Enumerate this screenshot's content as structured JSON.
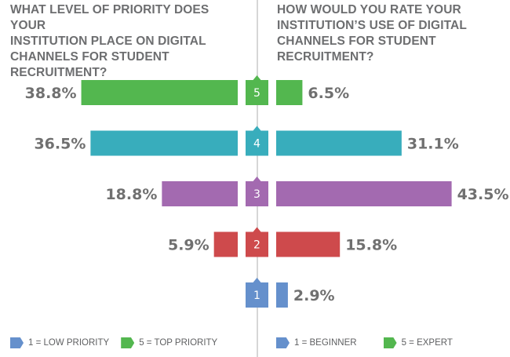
{
  "chart_data": {
    "type": "bar",
    "layout": "butterfly",
    "categories": [
      "5",
      "4",
      "3",
      "2",
      "1"
    ],
    "colors": {
      "5": "#53b74f",
      "4": "#38adbc",
      "3": "#a36ab0",
      "2": "#ce4a4c",
      "1": "#6590cc"
    },
    "panels": [
      {
        "title": "WHAT LEVEL OF PRIORITY DOES YOUR\nINSTITUTION PLACE ON DIGITAL\nCHANNELS FOR STUDENT RECRUITMENT?",
        "side": "left",
        "values": [
          38.8,
          36.5,
          18.8,
          5.9,
          null
        ],
        "labels": [
          "38.8%",
          "36.5%",
          "18.8%",
          "5.9%",
          ""
        ],
        "legend": [
          {
            "key": "1",
            "label": "1 = LOW PRIORITY"
          },
          {
            "key": "5",
            "label": "5 = TOP PRIORITY"
          }
        ]
      },
      {
        "title": "HOW WOULD YOU RATE YOUR\nINSTITUTION’S USE OF DIGITAL\nCHANNELS FOR STUDENT RECRUITMENT?",
        "side": "right",
        "values": [
          6.5,
          31.1,
          43.5,
          15.8,
          2.9
        ],
        "labels": [
          "6.5%",
          "31.1%",
          "43.5%",
          "15.8%",
          "2.9%"
        ],
        "legend": [
          {
            "key": "1",
            "label": "1 = BEGINNER"
          },
          {
            "key": "5",
            "label": "5 = EXPERT"
          }
        ]
      }
    ],
    "unit": "%"
  }
}
